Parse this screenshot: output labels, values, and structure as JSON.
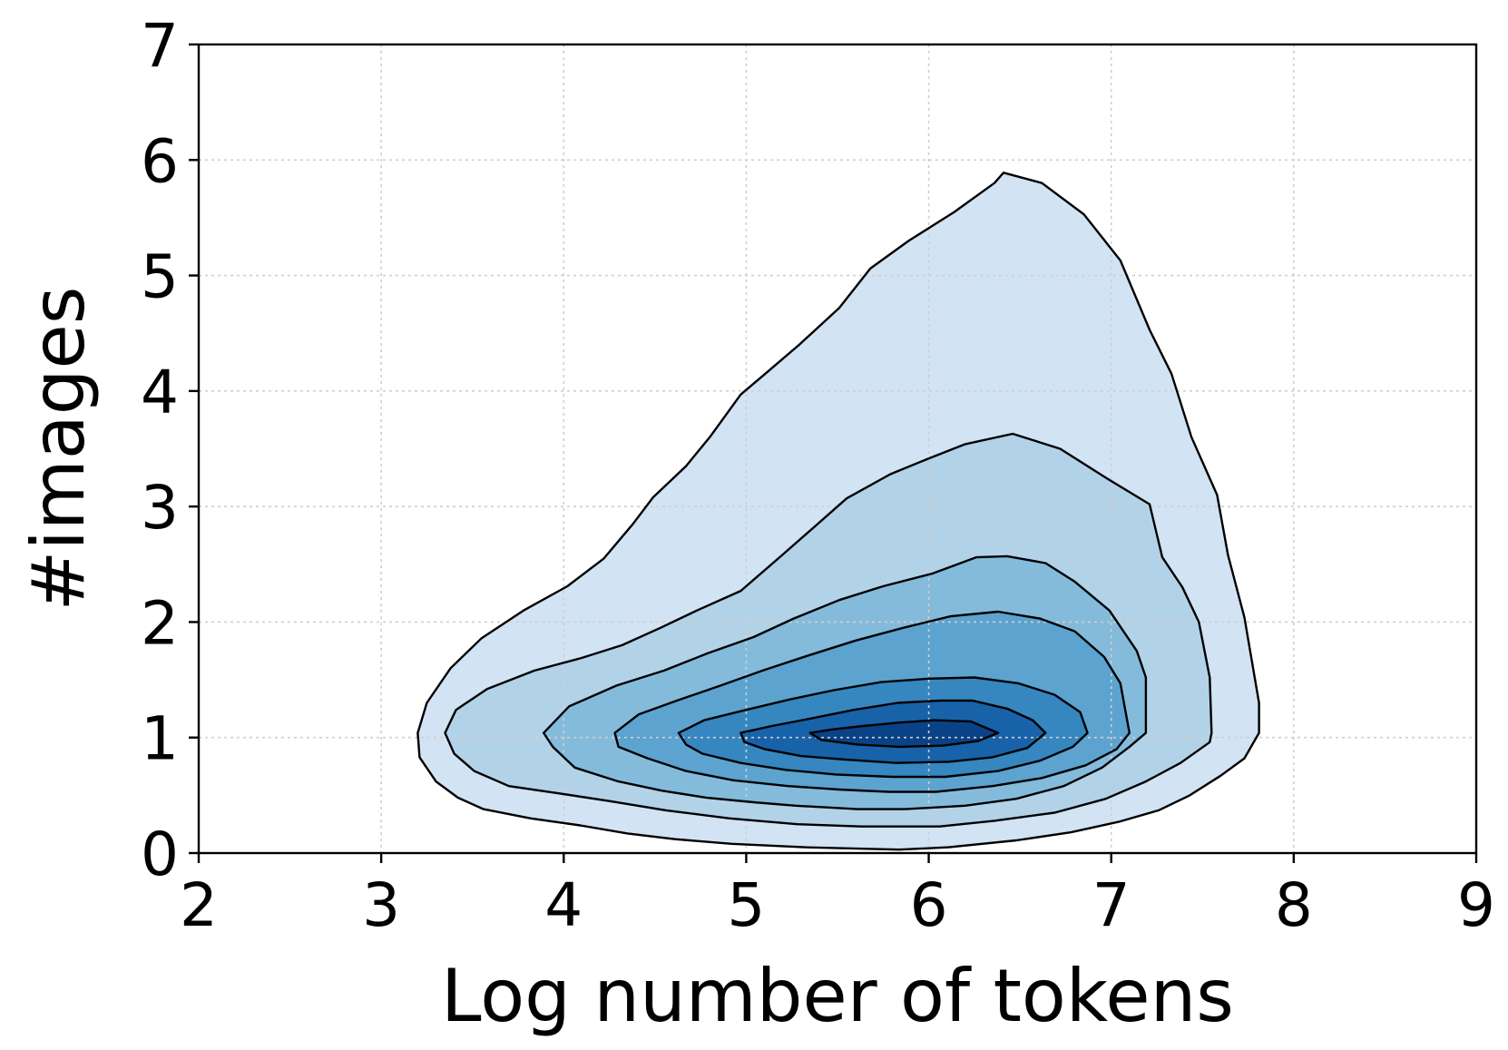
{
  "chart_data": {
    "type": "density-contour",
    "xlabel": "Log number of tokens",
    "ylabel": "#images",
    "xlim": [
      2,
      9
    ],
    "ylim": [
      0,
      7
    ],
    "xticks": [
      "2",
      "3",
      "4",
      "5",
      "6",
      "7",
      "8",
      "9"
    ],
    "yticks": [
      "0",
      "1",
      "2",
      "3",
      "4",
      "5",
      "6",
      "7"
    ],
    "grid": true,
    "colormap": "Blues",
    "levels": [
      {
        "color": "#d2e3f3",
        "points": [
          [
            6.41,
            5.89
          ],
          [
            6.62,
            5.8
          ],
          [
            6.85,
            5.53
          ],
          [
            7.05,
            5.13
          ],
          [
            7.21,
            4.53
          ],
          [
            7.33,
            4.15
          ],
          [
            7.44,
            3.6
          ],
          [
            7.58,
            3.1
          ],
          [
            7.64,
            2.58
          ],
          [
            7.73,
            2.04
          ],
          [
            7.81,
            1.3
          ],
          [
            7.81,
            1.04
          ],
          [
            7.73,
            0.82
          ],
          [
            7.6,
            0.67
          ],
          [
            7.43,
            0.5
          ],
          [
            7.26,
            0.37
          ],
          [
            7.04,
            0.27
          ],
          [
            6.78,
            0.18
          ],
          [
            6.48,
            0.11
          ],
          [
            6.11,
            0.05
          ],
          [
            5.84,
            0.03
          ],
          [
            5.32,
            0.05
          ],
          [
            4.92,
            0.08
          ],
          [
            4.61,
            0.12
          ],
          [
            4.35,
            0.17
          ],
          [
            4.09,
            0.24
          ],
          [
            3.82,
            0.3
          ],
          [
            3.56,
            0.38
          ],
          [
            3.42,
            0.48
          ],
          [
            3.3,
            0.62
          ],
          [
            3.21,
            0.83
          ],
          [
            3.2,
            1.04
          ],
          [
            3.25,
            1.3
          ],
          [
            3.38,
            1.6
          ],
          [
            3.55,
            1.86
          ],
          [
            3.78,
            2.1
          ],
          [
            4.02,
            2.31
          ],
          [
            4.22,
            2.55
          ],
          [
            4.38,
            2.85
          ],
          [
            4.49,
            3.08
          ],
          [
            4.67,
            3.35
          ],
          [
            4.8,
            3.6
          ],
          [
            4.97,
            3.97
          ],
          [
            5.09,
            4.13
          ],
          [
            5.29,
            4.4
          ],
          [
            5.51,
            4.72
          ],
          [
            5.68,
            5.06
          ],
          [
            5.89,
            5.3
          ],
          [
            6.14,
            5.55
          ],
          [
            6.36,
            5.8
          ],
          [
            6.41,
            5.89
          ]
        ]
      },
      {
        "color": "#b2d2e8",
        "points": [
          [
            6.46,
            3.63
          ],
          [
            6.72,
            3.5
          ],
          [
            6.98,
            3.24
          ],
          [
            7.21,
            3.02
          ],
          [
            7.28,
            2.56
          ],
          [
            7.39,
            2.3
          ],
          [
            7.48,
            2.0
          ],
          [
            7.54,
            1.52
          ],
          [
            7.55,
            1.04
          ],
          [
            7.54,
            0.96
          ],
          [
            7.38,
            0.78
          ],
          [
            7.19,
            0.62
          ],
          [
            6.97,
            0.47
          ],
          [
            6.69,
            0.35
          ],
          [
            6.36,
            0.28
          ],
          [
            6.06,
            0.23
          ],
          [
            5.63,
            0.23
          ],
          [
            5.28,
            0.25
          ],
          [
            4.91,
            0.3
          ],
          [
            4.56,
            0.37
          ],
          [
            4.25,
            0.45
          ],
          [
            3.96,
            0.52
          ],
          [
            3.7,
            0.58
          ],
          [
            3.51,
            0.71
          ],
          [
            3.4,
            0.86
          ],
          [
            3.35,
            1.04
          ],
          [
            3.41,
            1.24
          ],
          [
            3.58,
            1.42
          ],
          [
            3.84,
            1.58
          ],
          [
            4.1,
            1.69
          ],
          [
            4.32,
            1.8
          ],
          [
            4.53,
            1.95
          ],
          [
            4.73,
            2.1
          ],
          [
            4.97,
            2.27
          ],
          [
            5.19,
            2.57
          ],
          [
            5.37,
            2.82
          ],
          [
            5.55,
            3.07
          ],
          [
            5.79,
            3.28
          ],
          [
            5.99,
            3.41
          ],
          [
            6.2,
            3.54
          ],
          [
            6.46,
            3.63
          ]
        ]
      },
      {
        "color": "#84bbdb",
        "points": [
          [
            6.43,
            2.57
          ],
          [
            6.64,
            2.51
          ],
          [
            6.8,
            2.35
          ],
          [
            6.99,
            2.1
          ],
          [
            7.14,
            1.75
          ],
          [
            7.19,
            1.52
          ],
          [
            7.19,
            1.04
          ],
          [
            7.1,
            0.92
          ],
          [
            6.95,
            0.74
          ],
          [
            6.74,
            0.58
          ],
          [
            6.48,
            0.47
          ],
          [
            6.2,
            0.41
          ],
          [
            5.87,
            0.38
          ],
          [
            5.61,
            0.38
          ],
          [
            5.27,
            0.41
          ],
          [
            5.04,
            0.44
          ],
          [
            4.78,
            0.48
          ],
          [
            4.54,
            0.54
          ],
          [
            4.3,
            0.62
          ],
          [
            4.06,
            0.74
          ],
          [
            3.94,
            0.92
          ],
          [
            3.89,
            1.04
          ],
          [
            4.03,
            1.27
          ],
          [
            4.29,
            1.45
          ],
          [
            4.55,
            1.58
          ],
          [
            4.79,
            1.73
          ],
          [
            5.04,
            1.87
          ],
          [
            5.26,
            2.03
          ],
          [
            5.51,
            2.19
          ],
          [
            5.75,
            2.31
          ],
          [
            6.02,
            2.42
          ],
          [
            6.26,
            2.56
          ],
          [
            6.43,
            2.57
          ]
        ]
      },
      {
        "color": "#5ca3d0",
        "points": [
          [
            6.38,
            2.09
          ],
          [
            6.61,
            2.03
          ],
          [
            6.8,
            1.92
          ],
          [
            6.96,
            1.7
          ],
          [
            7.05,
            1.47
          ],
          [
            7.1,
            1.04
          ],
          [
            7.03,
            0.9
          ],
          [
            6.86,
            0.76
          ],
          [
            6.62,
            0.65
          ],
          [
            6.35,
            0.58
          ],
          [
            6.04,
            0.53
          ],
          [
            5.78,
            0.53
          ],
          [
            5.51,
            0.55
          ],
          [
            5.23,
            0.58
          ],
          [
            4.93,
            0.63
          ],
          [
            4.67,
            0.71
          ],
          [
            4.46,
            0.82
          ],
          [
            4.3,
            0.92
          ],
          [
            4.28,
            1.04
          ],
          [
            4.41,
            1.2
          ],
          [
            4.62,
            1.32
          ],
          [
            4.86,
            1.45
          ],
          [
            5.09,
            1.58
          ],
          [
            5.34,
            1.71
          ],
          [
            5.6,
            1.84
          ],
          [
            5.86,
            1.95
          ],
          [
            6.12,
            2.05
          ],
          [
            6.38,
            2.09
          ]
        ]
      },
      {
        "color": "#3686c0",
        "points": [
          [
            6.25,
            1.52
          ],
          [
            6.49,
            1.47
          ],
          [
            6.69,
            1.37
          ],
          [
            6.83,
            1.22
          ],
          [
            6.87,
            1.04
          ],
          [
            6.79,
            0.92
          ],
          [
            6.61,
            0.8
          ],
          [
            6.38,
            0.71
          ],
          [
            6.09,
            0.66
          ],
          [
            5.8,
            0.66
          ],
          [
            5.49,
            0.68
          ],
          [
            5.22,
            0.72
          ],
          [
            4.97,
            0.78
          ],
          [
            4.76,
            0.86
          ],
          [
            4.67,
            0.94
          ],
          [
            4.63,
            1.04
          ],
          [
            4.77,
            1.15
          ],
          [
            5.0,
            1.24
          ],
          [
            5.24,
            1.33
          ],
          [
            5.48,
            1.41
          ],
          [
            5.74,
            1.48
          ],
          [
            6.0,
            1.51
          ],
          [
            6.25,
            1.52
          ]
        ]
      },
      {
        "color": "#1862a9",
        "points": [
          [
            6.24,
            1.32
          ],
          [
            6.43,
            1.25
          ],
          [
            6.57,
            1.15
          ],
          [
            6.64,
            1.04
          ],
          [
            6.54,
            0.91
          ],
          [
            6.35,
            0.83
          ],
          [
            6.11,
            0.79
          ],
          [
            5.82,
            0.78
          ],
          [
            5.54,
            0.81
          ],
          [
            5.3,
            0.84
          ],
          [
            5.1,
            0.9
          ],
          [
            4.99,
            0.96
          ],
          [
            4.97,
            1.04
          ],
          [
            5.14,
            1.1
          ],
          [
            5.37,
            1.17
          ],
          [
            5.59,
            1.24
          ],
          [
            5.83,
            1.3
          ],
          [
            6.06,
            1.32
          ],
          [
            6.24,
            1.32
          ]
        ]
      },
      {
        "color": "#0a4287",
        "points": [
          [
            6.23,
            1.14
          ],
          [
            6.32,
            1.08
          ],
          [
            6.38,
            1.04
          ],
          [
            6.27,
            0.97
          ],
          [
            6.08,
            0.93
          ],
          [
            5.84,
            0.92
          ],
          [
            5.61,
            0.94
          ],
          [
            5.41,
            0.98
          ],
          [
            5.35,
            1.04
          ],
          [
            5.47,
            1.07
          ],
          [
            5.64,
            1.1
          ],
          [
            5.84,
            1.13
          ],
          [
            6.03,
            1.15
          ],
          [
            6.23,
            1.14
          ]
        ]
      }
    ]
  }
}
